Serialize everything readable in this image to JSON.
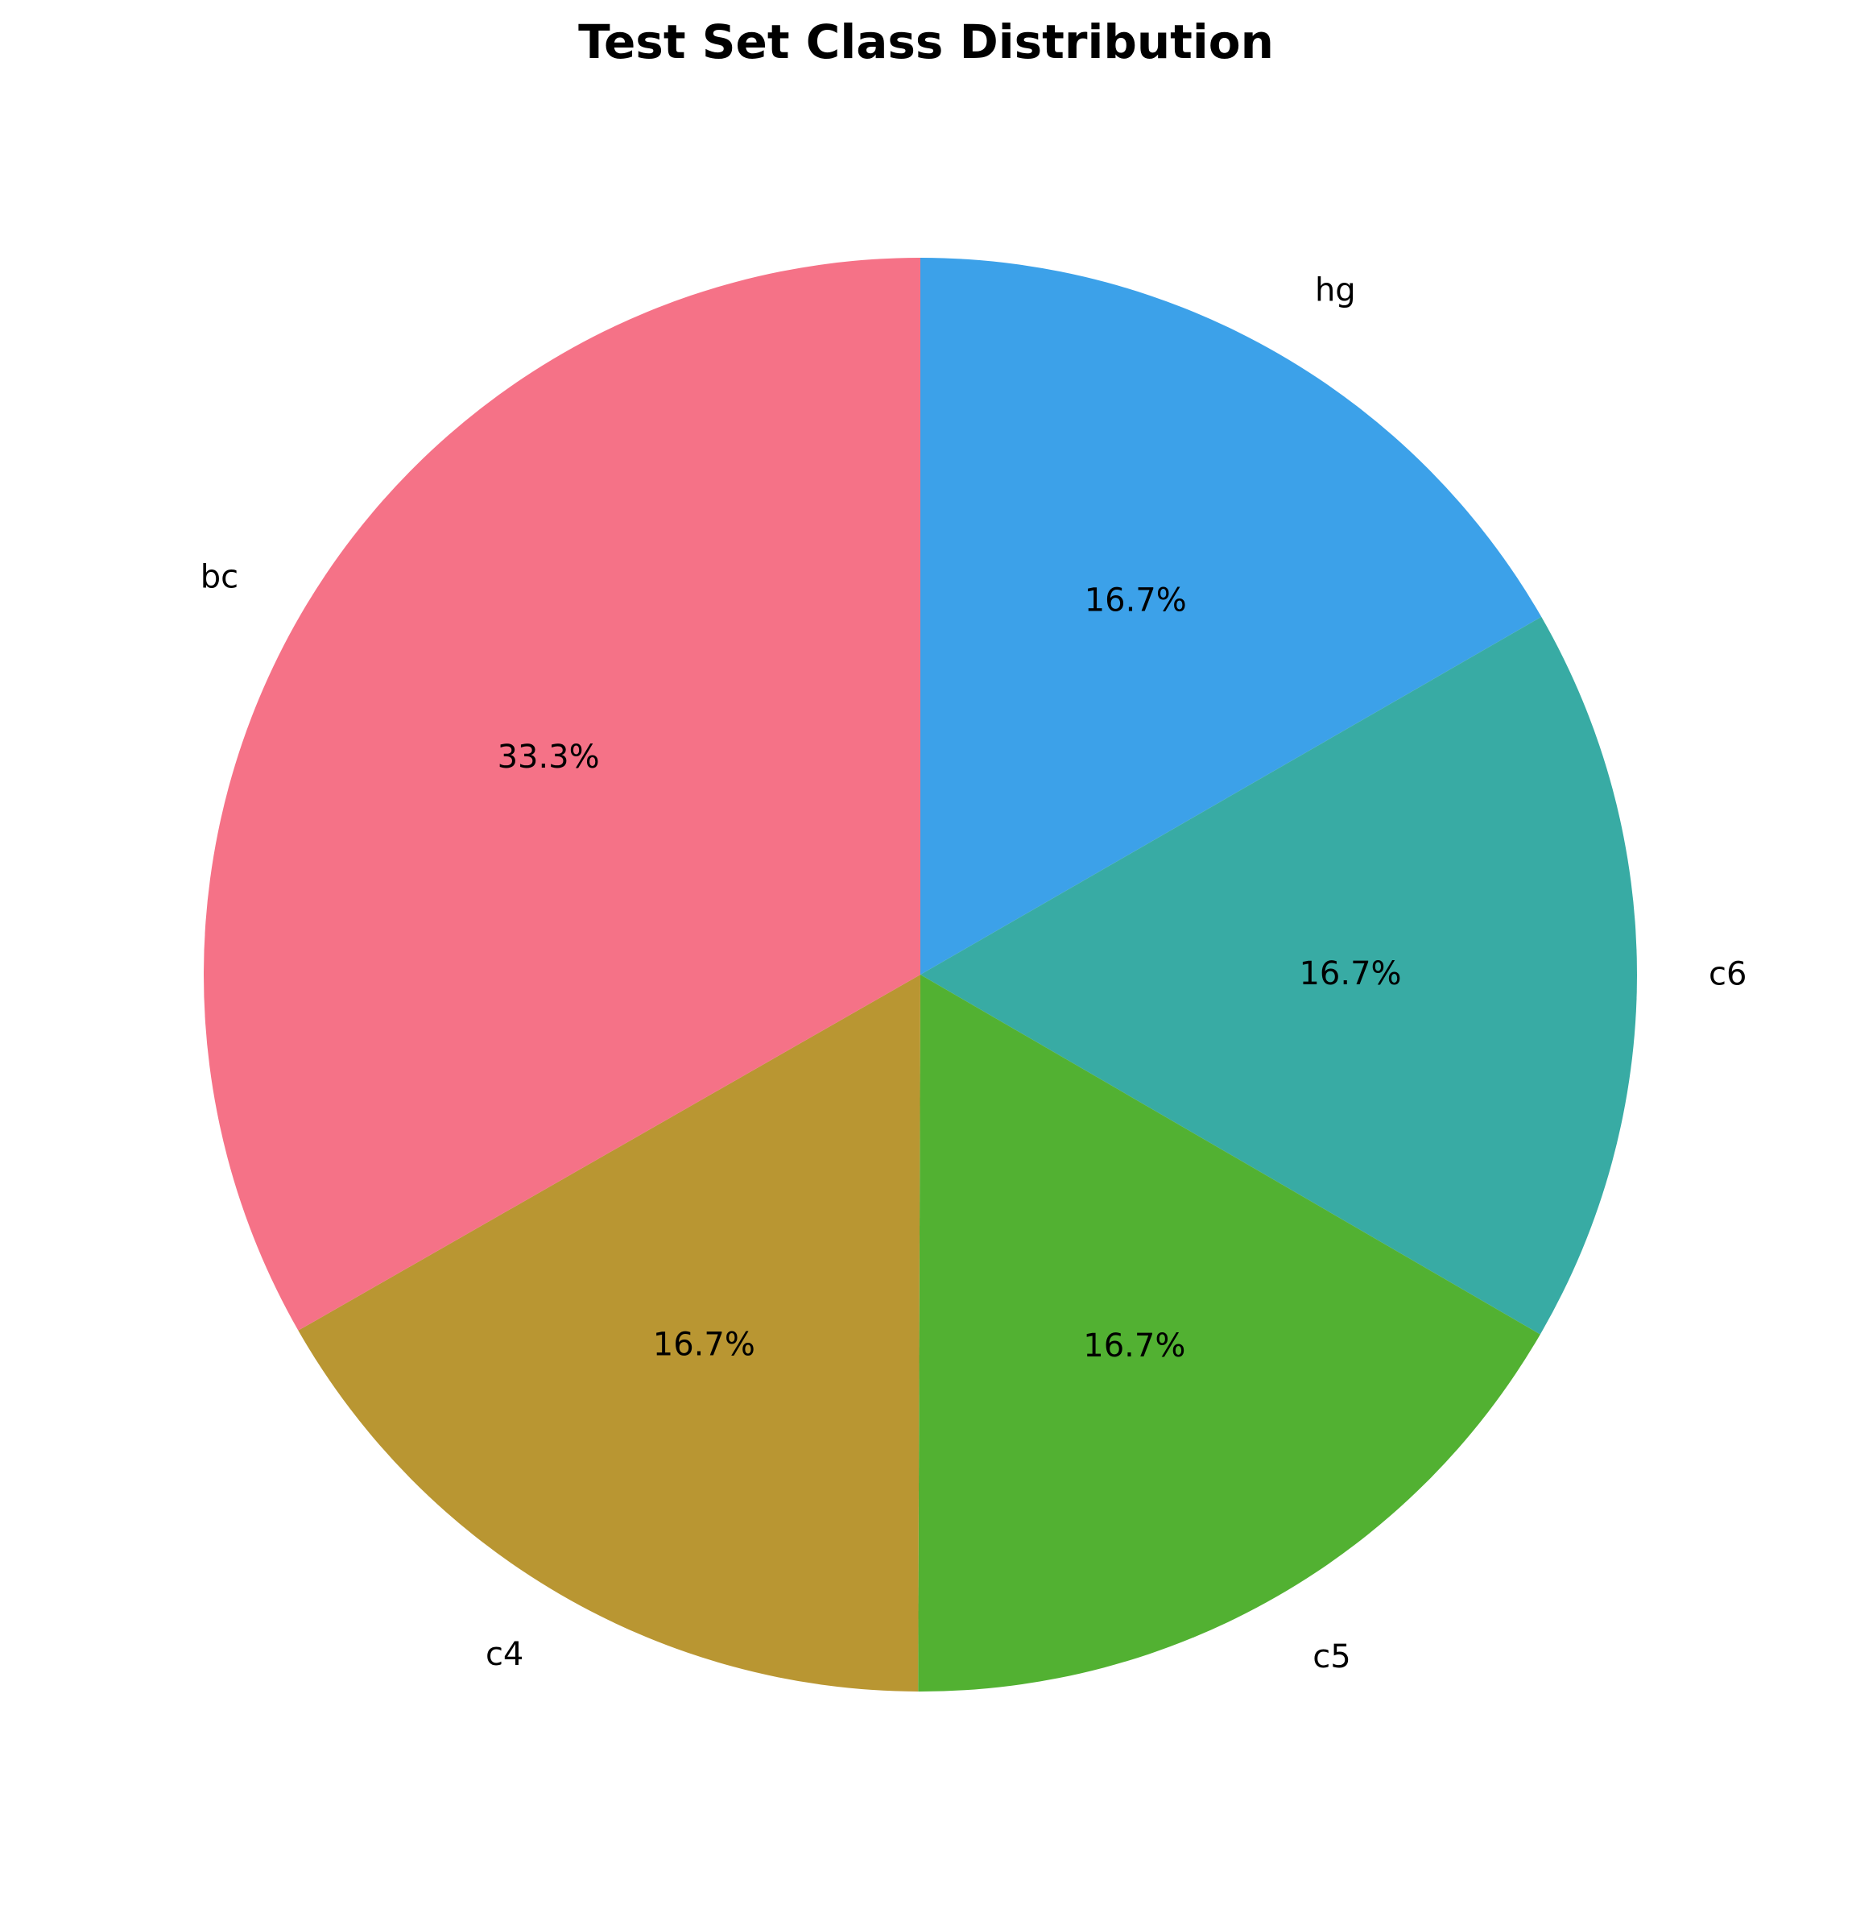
{
  "chart_data": {
    "type": "pie",
    "title": "Test Set Class Distribution",
    "start_angle_deg": 90,
    "direction": "clockwise",
    "slices": [
      {
        "label": "hg",
        "value": 16.7,
        "pct_label": "16.7%",
        "color": "#3ca1e9"
      },
      {
        "label": "c6",
        "value": 16.7,
        "pct_label": "16.7%",
        "color": "#38aba4"
      },
      {
        "label": "c5",
        "value": 16.7,
        "pct_label": "16.7%",
        "color": "#52b132"
      },
      {
        "label": "c4",
        "value": 16.7,
        "pct_label": "16.7%",
        "color": "#b99632"
      },
      {
        "label": "bc",
        "value": 33.3,
        "pct_label": "33.3%",
        "color": "#f57287"
      }
    ]
  }
}
